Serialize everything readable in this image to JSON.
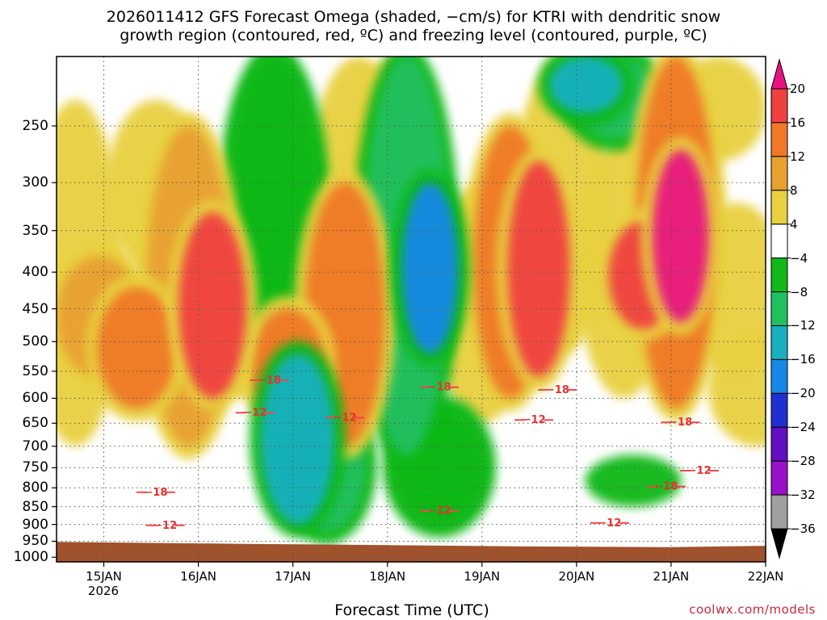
{
  "title": {
    "line1": "2026011412 GFS Forecast Omega (shaded, −cm/s) for KTRI with dendritic snow",
    "line2": "growth region (contoured, red, ºC) and freezing level (contoured, purple, ºC)"
  },
  "credit": "coolwx.com/models",
  "chart_data": {
    "type": "heatmap",
    "title": "2026011412 GFS Forecast Omega (shaded, −cm/s) for KTRI with dendritic snow growth region (contoured, red, ºC) and freezing level (contoured, purple, ºC)",
    "xlabel": "Forecast Time (UTC)",
    "ylabel": "",
    "x_ticks": [
      "15JAN",
      "16JAN",
      "17JAN",
      "18JAN",
      "19JAN",
      "20JAN",
      "21JAN",
      "22JAN"
    ],
    "x_year_label": "2026",
    "xlim_days": [
      14.5,
      22.0
    ],
    "y_ticks": [
      "250",
      "300",
      "350",
      "400",
      "450",
      "500",
      "550",
      "600",
      "650",
      "700",
      "750",
      "800",
      "850",
      "900",
      "950",
      "1000"
    ],
    "y_tick_values": [
      250,
      300,
      350,
      400,
      450,
      500,
      550,
      600,
      650,
      700,
      750,
      800,
      850,
      900,
      950,
      1000
    ],
    "ylim_hpa": [
      200,
      1015
    ],
    "y_scale": "log-pressure",
    "grid": true,
    "colorbar": {
      "labels": [
        "20",
        "16",
        "12",
        "8",
        "4",
        "−4",
        "−8",
        "−12",
        "−16",
        "−20",
        "−24",
        "−28",
        "−32",
        "−36"
      ],
      "bins": [
        {
          "min": 20,
          "max": 24,
          "color": "#e8137f"
        },
        {
          "min": 16,
          "max": 20,
          "color": "#f04040"
        },
        {
          "min": 12,
          "max": 16,
          "color": "#f07828"
        },
        {
          "min": 8,
          "max": 12,
          "color": "#e8a030"
        },
        {
          "min": 4,
          "max": 8,
          "color": "#e8d040"
        },
        {
          "min": -4,
          "max": 4,
          "color": "#ffffff"
        },
        {
          "min": -8,
          "max": -4,
          "color": "#10b818"
        },
        {
          "min": -12,
          "max": -8,
          "color": "#20c060"
        },
        {
          "min": -16,
          "max": -12,
          "color": "#18b0c0"
        },
        {
          "min": -20,
          "max": -16,
          "color": "#1888e8"
        },
        {
          "min": -24,
          "max": -20,
          "color": "#2030d0"
        },
        {
          "min": -28,
          "max": -24,
          "color": "#6010c0"
        },
        {
          "min": -32,
          "max": -28,
          "color": "#9810c8"
        },
        {
          "min": -36,
          "max": -32,
          "color": "#a0a0a0"
        },
        {
          "min": -40,
          "max": -36,
          "color": "#000000"
        }
      ]
    },
    "shaded_features": [
      {
        "day": 14.7,
        "p_top": 230,
        "p_bot": 700,
        "omega": 6
      },
      {
        "day": 14.95,
        "p_top": 380,
        "p_bot": 560,
        "omega": 10
      },
      {
        "day": 15.35,
        "p_top": 420,
        "p_bot": 620,
        "omega": 12
      },
      {
        "day": 15.55,
        "p_top": 230,
        "p_bot": 400,
        "omega": 5
      },
      {
        "day": 15.9,
        "p_top": 250,
        "p_bot": 700,
        "omega": 10
      },
      {
        "day": 16.15,
        "p_top": 330,
        "p_bot": 600,
        "omega": 16
      },
      {
        "day": 16.45,
        "p_top": 300,
        "p_bot": 600,
        "omega": 5
      },
      {
        "day": 16.8,
        "p_top": 200,
        "p_bot": 550,
        "omega": -8
      },
      {
        "day": 16.95,
        "p_top": 450,
        "p_bot": 650,
        "omega": 14
      },
      {
        "day": 17.05,
        "p_top": 520,
        "p_bot": 900,
        "omega": -14
      },
      {
        "day": 17.35,
        "p_top": 600,
        "p_bot": 920,
        "omega": -12
      },
      {
        "day": 17.55,
        "p_top": 300,
        "p_bot": 700,
        "omega": 12
      },
      {
        "day": 17.7,
        "p_top": 200,
        "p_bot": 450,
        "omega": 5
      },
      {
        "day": 18.05,
        "p_top": 200,
        "p_bot": 600,
        "omega": 5
      },
      {
        "day": 18.2,
        "p_top": 200,
        "p_bot": 720,
        "omega": -10
      },
      {
        "day": 18.45,
        "p_top": 300,
        "p_bot": 520,
        "omega": -20
      },
      {
        "day": 18.55,
        "p_top": 620,
        "p_bot": 900,
        "omega": -8
      },
      {
        "day": 19.0,
        "p_top": 300,
        "p_bot": 650,
        "omega": 6
      },
      {
        "day": 19.3,
        "p_top": 250,
        "p_bot": 600,
        "omega": 14
      },
      {
        "day": 19.6,
        "p_top": 280,
        "p_bot": 560,
        "omega": 18
      },
      {
        "day": 19.85,
        "p_top": 200,
        "p_bot": 520,
        "omega": 6
      },
      {
        "day": 20.1,
        "p_top": 200,
        "p_bot": 240,
        "omega": -14
      },
      {
        "day": 20.4,
        "p_top": 200,
        "p_bot": 260,
        "omega": -10
      },
      {
        "day": 20.5,
        "p_top": 260,
        "p_bot": 600,
        "omega": 7
      },
      {
        "day": 20.6,
        "p_top": 720,
        "p_bot": 850,
        "omega": -6
      },
      {
        "day": 20.7,
        "p_top": 340,
        "p_bot": 480,
        "omega": 16
      },
      {
        "day": 21.05,
        "p_top": 200,
        "p_bot": 620,
        "omega": 12
      },
      {
        "day": 21.1,
        "p_top": 270,
        "p_bot": 470,
        "omega": 22
      },
      {
        "day": 21.5,
        "p_top": 200,
        "p_bot": 280,
        "omega": 6
      },
      {
        "day": 21.7,
        "p_top": 320,
        "p_bot": 560,
        "omega": 5
      },
      {
        "day": 21.9,
        "p_top": 480,
        "p_bot": 700,
        "omega": 6
      }
    ],
    "contour_labels": [
      {
        "text": "−18",
        "day": 16.75,
        "p": 572,
        "color": "red"
      },
      {
        "text": "−18",
        "day": 18.55,
        "p": 585,
        "color": "red"
      },
      {
        "text": "−18",
        "day": 19.8,
        "p": 590,
        "color": "red"
      },
      {
        "text": "−18",
        "day": 21.1,
        "p": 655,
        "color": "red"
      },
      {
        "text": "−18",
        "day": 15.55,
        "p": 820,
        "color": "red"
      },
      {
        "text": "−18",
        "day": 20.95,
        "p": 805,
        "color": "red"
      },
      {
        "text": "−12",
        "day": 16.6,
        "p": 635,
        "color": "red"
      },
      {
        "text": "−12",
        "day": 17.55,
        "p": 645,
        "color": "red"
      },
      {
        "text": "−12",
        "day": 19.55,
        "p": 650,
        "color": "red"
      },
      {
        "text": "−12",
        "day": 18.55,
        "p": 870,
        "color": "red"
      },
      {
        "text": "−12",
        "day": 15.65,
        "p": 912,
        "color": "red"
      },
      {
        "text": "−12",
        "day": 20.35,
        "p": 905,
        "color": "red"
      },
      {
        "text": "−12",
        "day": 21.3,
        "p": 765,
        "color": "red"
      }
    ],
    "terrain": {
      "surface_p_hpa": [
        952,
        955,
        958,
        962,
        966,
        968,
        964
      ],
      "surface_days": [
        14.5,
        15.5,
        16.5,
        18.0,
        19.5,
        21.0,
        22.0
      ],
      "color": "#a0522d"
    }
  }
}
